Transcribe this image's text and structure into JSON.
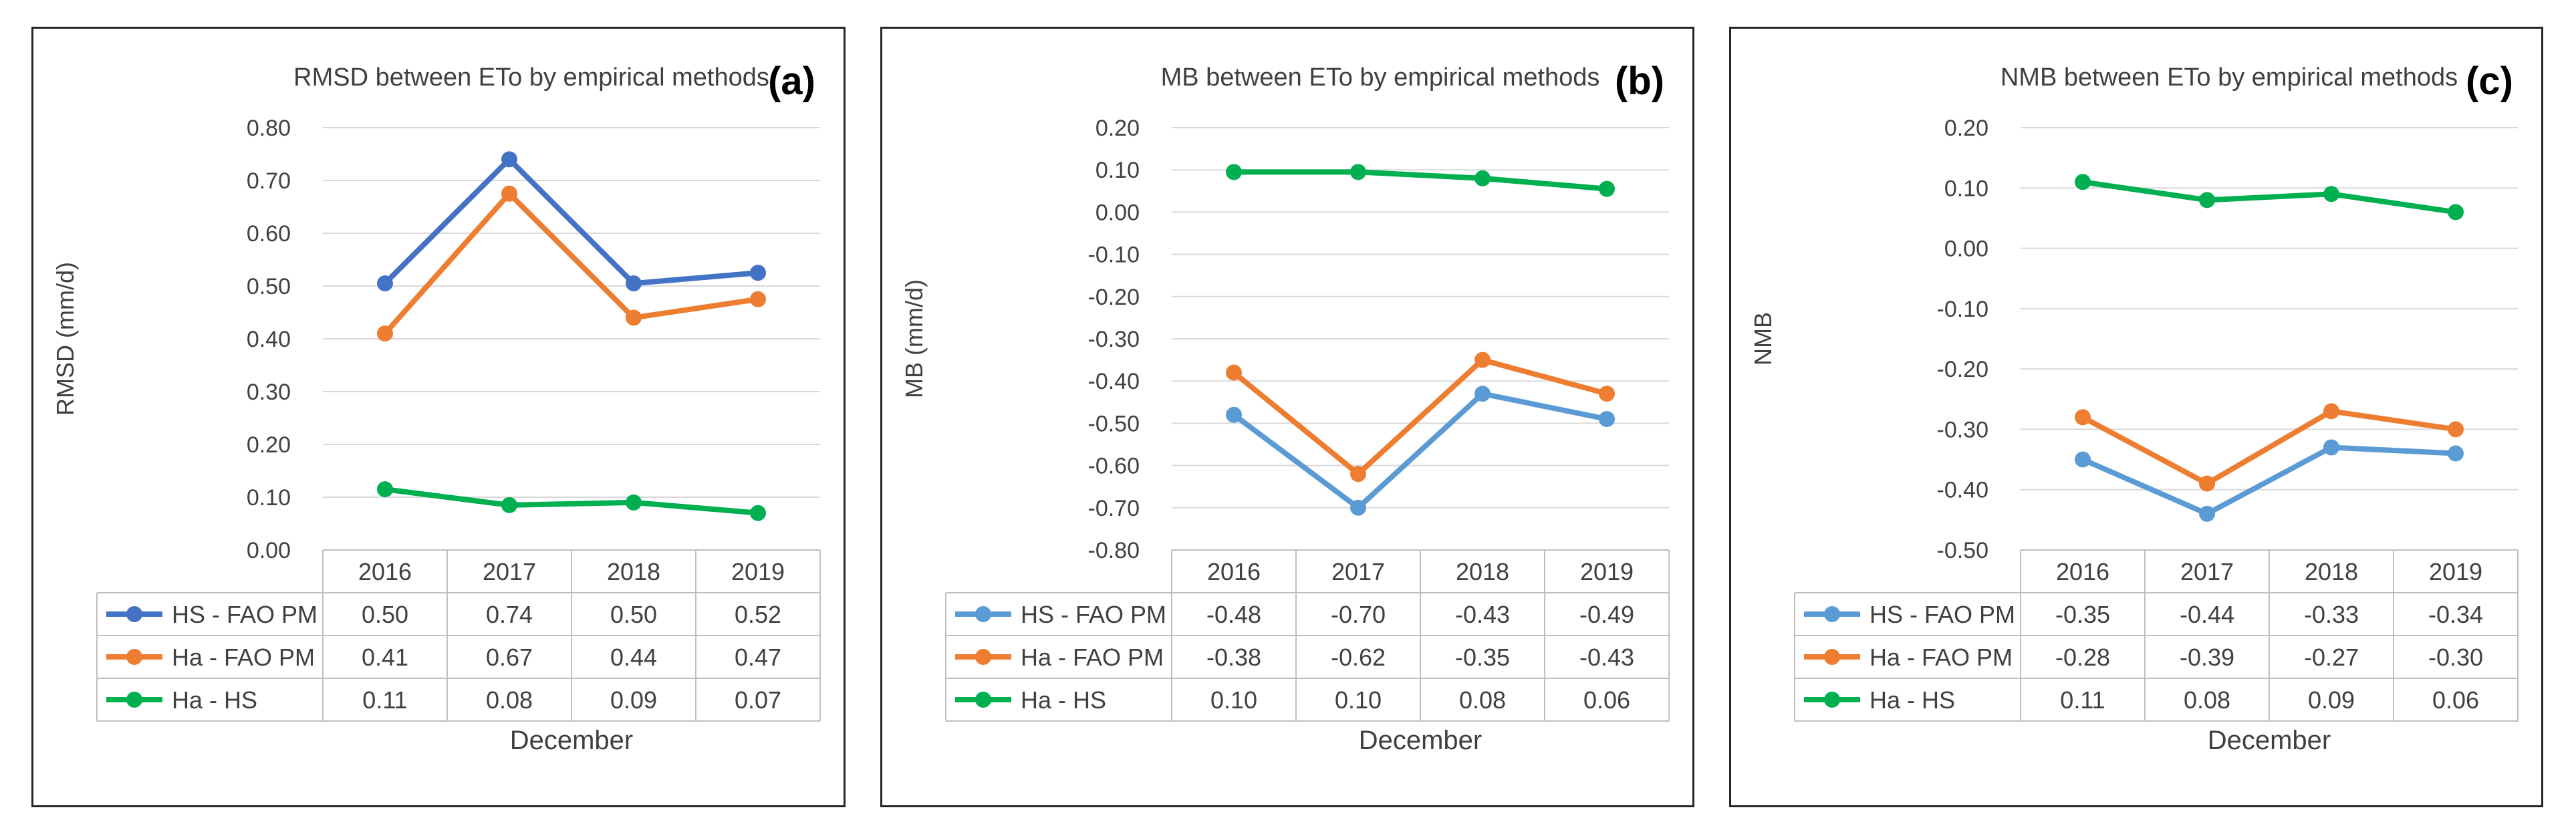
{
  "chart_data": [
    {
      "type": "line",
      "panel_tag": "(a)",
      "title": "RMSD between ETo by empirical methods",
      "ylabel": "RMSD (mm/d)",
      "xlabel": "December",
      "categories": [
        "2016",
        "2017",
        "2018",
        "2019"
      ],
      "ylim": [
        0.0,
        0.8
      ],
      "ytick_step": 0.1,
      "ytick_labels": [
        "0.00",
        "0.10",
        "0.20",
        "0.30",
        "0.40",
        "0.50",
        "0.60",
        "0.70",
        "0.80"
      ],
      "grid": true,
      "legend": "data-table",
      "series": [
        {
          "name": "HS - FAO PM",
          "color": "#4472c4",
          "values": [
            0.505,
            0.74,
            0.505,
            0.525
          ],
          "labels": [
            "0.50",
            "0.74",
            "0.50",
            "0.52"
          ]
        },
        {
          "name": "Ha - FAO PM",
          "color": "#ed7d31",
          "values": [
            0.41,
            0.675,
            0.44,
            0.475
          ],
          "labels": [
            "0.41",
            "0.67",
            "0.44",
            "0.47"
          ]
        },
        {
          "name": "Ha - HS",
          "color": "#00b050",
          "values": [
            0.115,
            0.085,
            0.09,
            0.07
          ],
          "labels": [
            "0.11",
            "0.08",
            "0.09",
            "0.07"
          ]
        }
      ]
    },
    {
      "type": "line",
      "panel_tag": "(b)",
      "title": "MB between ETo by empirical methods",
      "ylabel": "MB (mm/d)",
      "xlabel": "December",
      "categories": [
        "2016",
        "2017",
        "2018",
        "2019"
      ],
      "ylim": [
        -0.8,
        0.2
      ],
      "ytick_step": 0.1,
      "ytick_labels": [
        "-0.80",
        "-0.70",
        "-0.60",
        "-0.50",
        "-0.40",
        "-0.30",
        "-0.20",
        "-0.10",
        "0.00",
        "0.10",
        "0.20"
      ],
      "grid": true,
      "legend": "data-table",
      "series": [
        {
          "name": "HS - FAO PM",
          "color": "#5b9bd5",
          "values": [
            -0.48,
            -0.7,
            -0.43,
            -0.49
          ],
          "labels": [
            "-0.48",
            "-0.70",
            "-0.43",
            "-0.49"
          ]
        },
        {
          "name": "Ha - FAO PM",
          "color": "#ed7d31",
          "values": [
            -0.38,
            -0.62,
            -0.35,
            -0.43
          ],
          "labels": [
            "-0.38",
            "-0.62",
            "-0.35",
            "-0.43"
          ]
        },
        {
          "name": "Ha - HS",
          "color": "#00b050",
          "values": [
            0.095,
            0.095,
            0.08,
            0.055
          ],
          "labels": [
            "0.10",
            "0.10",
            "0.08",
            "0.06"
          ]
        }
      ]
    },
    {
      "type": "line",
      "panel_tag": "(c)",
      "title": "NMB between ETo by empirical methods",
      "ylabel": "NMB",
      "xlabel": "December",
      "categories": [
        "2016",
        "2017",
        "2018",
        "2019"
      ],
      "ylim": [
        -0.5,
        0.2
      ],
      "ytick_step": 0.1,
      "ytick_labels": [
        "-0.50",
        "-0.40",
        "-0.30",
        "-0.20",
        "-0.10",
        "0.00",
        "0.10",
        "0.20"
      ],
      "grid": true,
      "legend": "data-table",
      "series": [
        {
          "name": "HS - FAO PM",
          "color": "#5b9bd5",
          "values": [
            -0.35,
            -0.44,
            -0.33,
            -0.34
          ],
          "labels": [
            "-0.35",
            "-0.44",
            "-0.33",
            "-0.34"
          ]
        },
        {
          "name": "Ha - FAO PM",
          "color": "#ed7d31",
          "values": [
            -0.28,
            -0.39,
            -0.27,
            -0.3
          ],
          "labels": [
            "-0.28",
            "-0.39",
            "-0.27",
            "-0.30"
          ]
        },
        {
          "name": "Ha - HS",
          "color": "#00b050",
          "values": [
            0.11,
            0.08,
            0.09,
            0.06
          ],
          "labels": [
            "0.11",
            "0.08",
            "0.09",
            "0.06"
          ]
        }
      ]
    }
  ]
}
